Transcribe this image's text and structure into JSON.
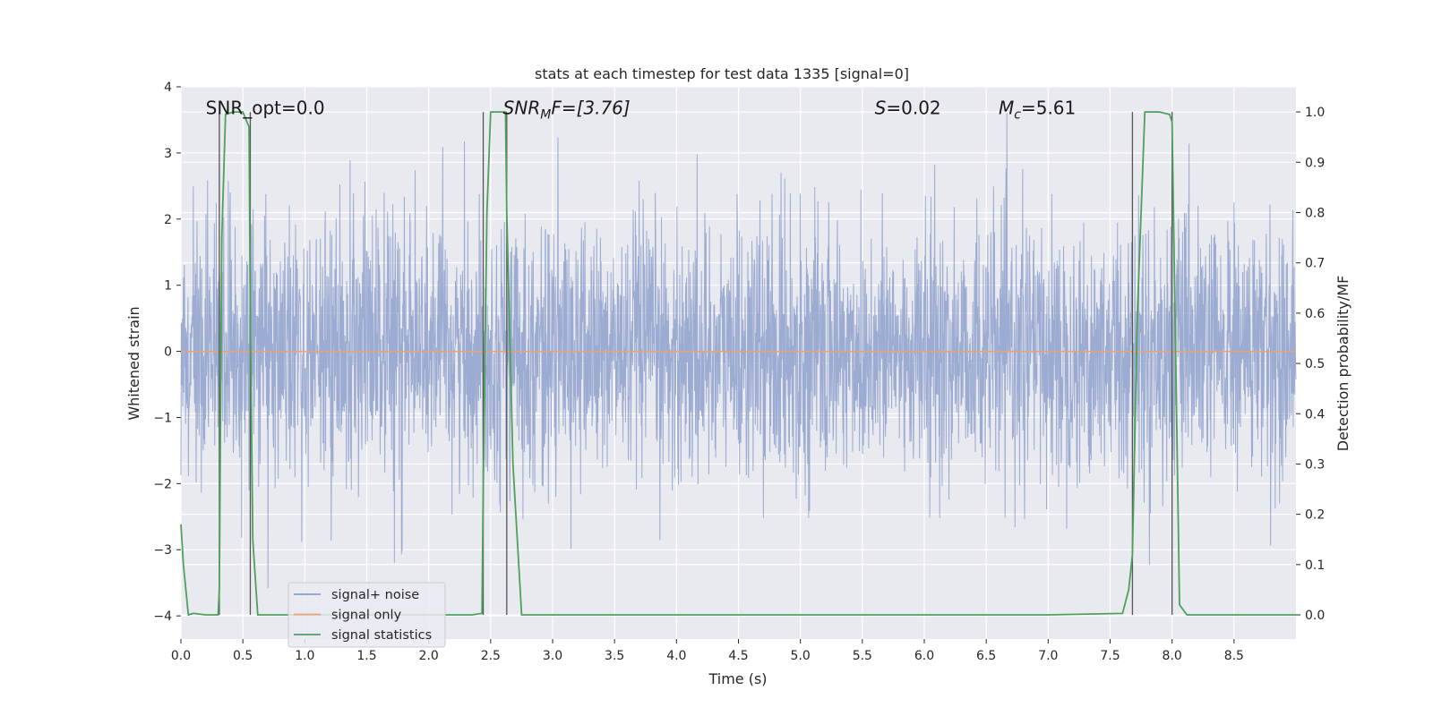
{
  "chart_data": {
    "type": "line",
    "title": "stats at each timestep for test data 1335 [signal=0]",
    "xlabel": "Time (s)",
    "ylabel": "Whitened strain",
    "y2label": "Detection probability/MF",
    "xlim": [
      0,
      9.0
    ],
    "ylim": [
      -4.35,
      4.0
    ],
    "y2lim": [
      -0.048,
      1.05
    ],
    "grid": true,
    "x_ticks": [
      "0.0",
      "0.5",
      "1.0",
      "1.5",
      "2.0",
      "2.5",
      "3.0",
      "3.5",
      "4.0",
      "4.5",
      "5.0",
      "5.5",
      "6.0",
      "6.5",
      "7.0",
      "7.5",
      "8.0",
      "8.5"
    ],
    "y_ticks": [
      "−4",
      "−3",
      "−2",
      "−1",
      "0",
      "1",
      "2",
      "3",
      "4"
    ],
    "y2_ticks": [
      "0.0",
      "0.1",
      "0.2",
      "0.3",
      "0.4",
      "0.5",
      "0.6",
      "0.7",
      "0.8",
      "0.9",
      "1.0"
    ],
    "annotations": [
      {
        "base": "SNR_opt=0.0",
        "sub": "",
        "tail": "",
        "x": 0.2,
        "y": 3.6
      },
      {
        "base": "SNR",
        "sub": "M",
        "tail": "F=[3.76]",
        "x": 2.6,
        "y": 3.6,
        "italic": true
      },
      {
        "base": "S",
        "sub": "",
        "tail": "=0.02",
        "x": 5.6,
        "y": 3.6,
        "italic": true
      },
      {
        "base": "M",
        "sub": "c",
        "tail": "=5.61",
        "x": 6.6,
        "y": 3.6,
        "italic": true
      }
    ],
    "vertical_lines_x": [
      0.31,
      0.56,
      2.44,
      2.63,
      7.68,
      8.0
    ],
    "legend": {
      "position": "lower-left",
      "entries": [
        {
          "label": "signal+ noise",
          "color": "#8da0cb"
        },
        {
          "label": "signal only",
          "color": "#e8a27a"
        },
        {
          "label": "signal statistics",
          "color": "#4ea05d"
        }
      ]
    },
    "series": [
      {
        "name": "signal+ noise",
        "axis": "left",
        "color": "#8da0cb",
        "description_values": {
          "envelope_typical": [
            -1.7,
            1.7
          ],
          "extremes": [
            -4.0,
            3.6
          ],
          "seed": 1335
        }
      },
      {
        "name": "signal only",
        "axis": "left",
        "color": "#e8a27a",
        "x": [
          0,
          9.0
        ],
        "y": [
          0,
          0
        ]
      },
      {
        "name": "signal statistics",
        "axis": "right",
        "color": "#4ea05d",
        "x": [
          0.0,
          0.02,
          0.06,
          0.1,
          0.2,
          0.3,
          0.31,
          0.33,
          0.36,
          0.42,
          0.5,
          0.55,
          0.56,
          0.58,
          0.62,
          0.66,
          0.72,
          0.9,
          1.5,
          2.0,
          2.35,
          2.43,
          2.44,
          2.47,
          2.5,
          2.6,
          2.62,
          2.63,
          2.68,
          2.75,
          3.0,
          4.0,
          5.0,
          6.0,
          7.0,
          7.6,
          7.65,
          7.68,
          7.72,
          7.78,
          7.9,
          7.98,
          8.0,
          8.03,
          8.06,
          8.12,
          8.3,
          8.7,
          9.0
        ],
        "y": [
          0.18,
          0.1,
          0.0,
          0.003,
          0.0,
          0.0,
          0.05,
          0.75,
          0.995,
          1.0,
          1.0,
          0.97,
          0.6,
          0.15,
          0.0,
          0.0,
          0.0,
          0.0,
          0.0,
          0.0,
          0.0,
          0.003,
          0.25,
          0.8,
          1.0,
          1.0,
          1.0,
          0.8,
          0.3,
          0.0,
          0.0,
          0.0,
          0.0,
          0.0,
          0.0,
          0.003,
          0.05,
          0.12,
          0.6,
          1.0,
          1.0,
          0.995,
          0.98,
          0.5,
          0.02,
          0.0,
          0.0,
          0.0,
          0.0
        ]
      }
    ]
  },
  "colors": {
    "plot_bg": "#e9e9f0",
    "grid": "#ffffff",
    "noise": "#8da0cb",
    "signal": "#e8a27a",
    "stats": "#4ea05d",
    "vline": "#555555"
  }
}
